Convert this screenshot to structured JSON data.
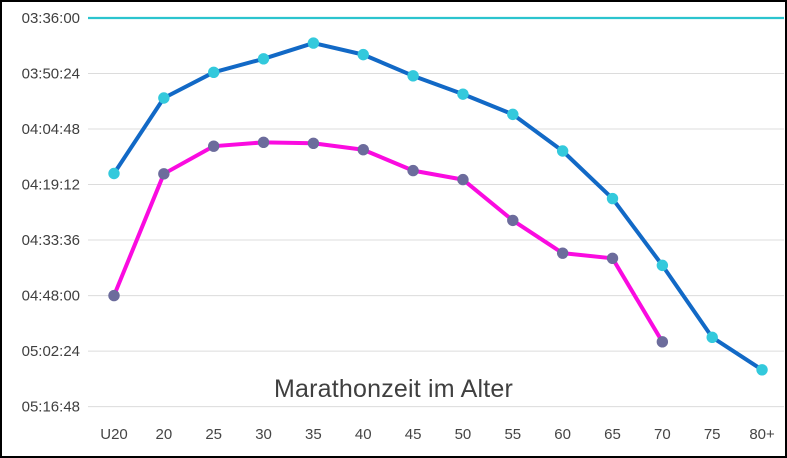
{
  "chart_data": {
    "type": "line",
    "title": "Marathonzeit im Alter",
    "xlabel": "",
    "ylabel": "",
    "categories": [
      "U20",
      "20",
      "25",
      "30",
      "35",
      "40",
      "45",
      "50",
      "55",
      "60",
      "65",
      "70",
      "75",
      "80+"
    ],
    "y_axis": {
      "format": "hh:mm:ss",
      "min": "03:36:00",
      "max": "05:16:48",
      "tick_step": "00:14:24",
      "direction": "smaller-times-at-top",
      "ticks": [
        "03:36:00",
        "03:50:24",
        "04:04:48",
        "04:19:12",
        "04:33:36",
        "04:48:00",
        "05:02:24",
        "05:16:48"
      ]
    },
    "series": [
      {
        "name": "series_blue",
        "line_color": "#1269C6",
        "marker_color": "#33C9DC",
        "values": [
          "04:16:20",
          "03:56:45",
          "03:50:05",
          "03:46:35",
          "03:42:30",
          "03:45:30",
          "03:51:00",
          "03:55:45",
          "04:01:00",
          "04:10:30",
          "04:22:50",
          "04:40:10",
          "04:58:50",
          "05:07:15"
        ]
      },
      {
        "name": "series_magenta",
        "line_color": "#FA0BE0",
        "marker_color": "#6C6C9C",
        "values": [
          "04:48:00",
          "04:16:25",
          "04:09:15",
          "04:08:15",
          "04:08:30",
          "04:10:10",
          "04:15:35",
          "04:17:55",
          "04:28:30",
          "04:37:00",
          "04:38:20",
          "05:00:00",
          null,
          null
        ]
      }
    ],
    "reference_line": {
      "value": "03:36:00",
      "color": "#2BC4CE"
    },
    "grid": true,
    "gridline_color": "#DCDCDC",
    "axis_label_color": "#3F3F3F",
    "legend": "none"
  }
}
